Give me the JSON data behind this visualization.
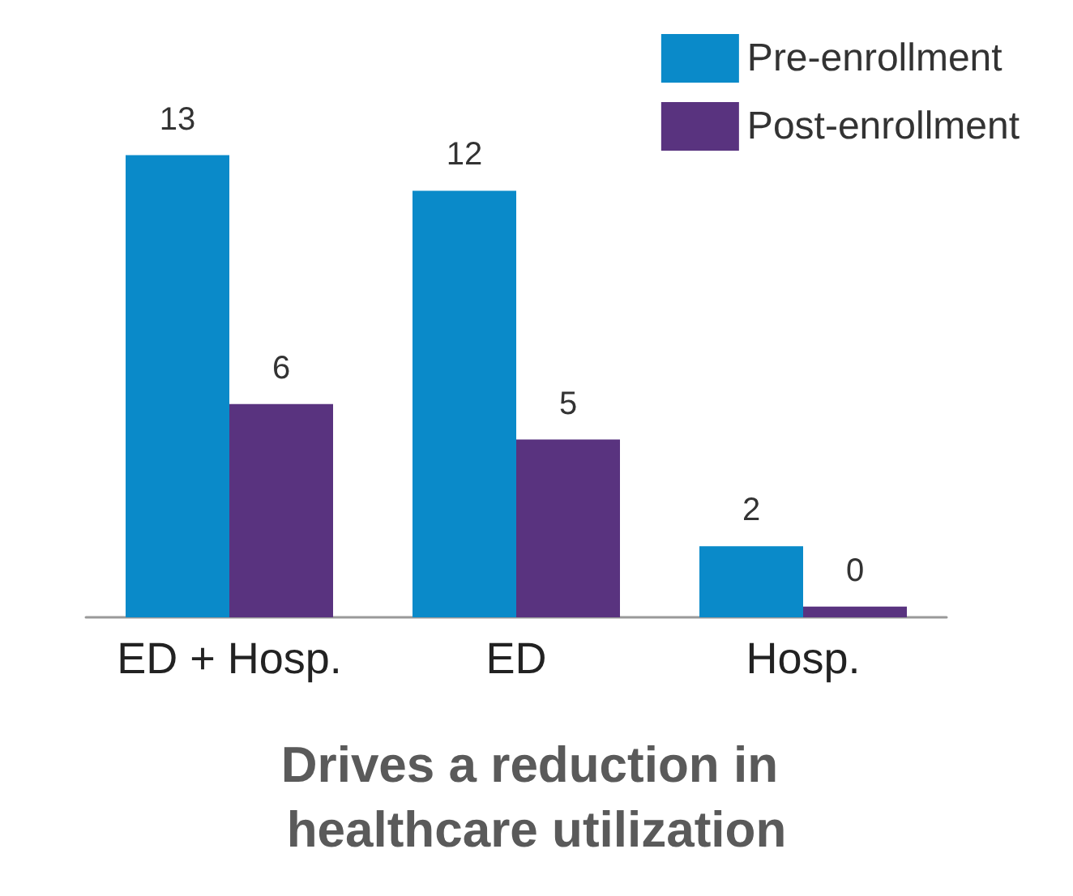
{
  "chart_data": {
    "type": "bar",
    "title": "Drives a reduction in healthcare utilization",
    "categories": [
      "ED + Hosp.",
      "ED",
      "Hosp."
    ],
    "series": [
      {
        "name": "Pre-enrollment",
        "color": "#0a8ac9",
        "values": [
          13,
          12,
          2
        ],
        "value_labels": [
          "13",
          "12",
          "2"
        ]
      },
      {
        "name": "Post-enrollment",
        "color": "#59337f",
        "values": [
          6,
          5,
          0.3
        ],
        "value_labels": [
          "6",
          "5",
          "0"
        ]
      }
    ],
    "legend": "top right"
  }
}
